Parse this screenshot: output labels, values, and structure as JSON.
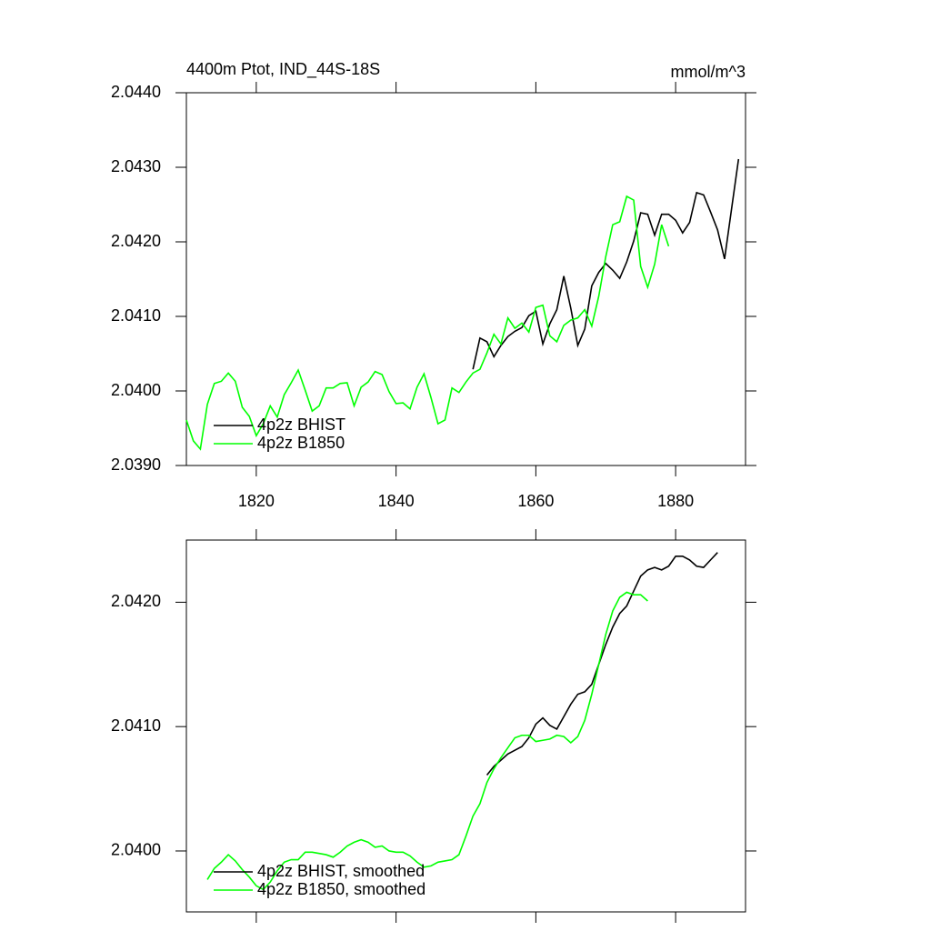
{
  "chart_data": [
    {
      "type": "line",
      "title": "4400m Ptot, IND_44S-18S",
      "units": "mmol/m^3",
      "x": [
        1810,
        1811,
        1812,
        1813,
        1814,
        1815,
        1816,
        1817,
        1818,
        1819,
        1820,
        1821,
        1822,
        1823,
        1824,
        1825,
        1826,
        1827,
        1828,
        1829,
        1830,
        1831,
        1832,
        1833,
        1834,
        1835,
        1836,
        1837,
        1838,
        1839,
        1840,
        1841,
        1842,
        1843,
        1844,
        1845,
        1846,
        1847,
        1848,
        1849,
        1850,
        1851,
        1852,
        1853,
        1854,
        1855,
        1856,
        1857,
        1858,
        1859,
        1860,
        1861,
        1862,
        1863,
        1864,
        1865,
        1866,
        1867,
        1868,
        1869,
        1870,
        1871,
        1872,
        1873,
        1874,
        1875,
        1876,
        1877,
        1878,
        1879,
        1880,
        1881,
        1882,
        1883,
        1884,
        1885,
        1886,
        1887,
        1888,
        1889
      ],
      "series": [
        {
          "name": "4p2z BHIST",
          "color": "#000000",
          "values": [
            null,
            null,
            null,
            null,
            null,
            null,
            null,
            null,
            null,
            null,
            null,
            null,
            null,
            null,
            null,
            null,
            null,
            null,
            null,
            null,
            null,
            null,
            null,
            null,
            null,
            null,
            null,
            null,
            null,
            null,
            null,
            null,
            null,
            null,
            null,
            null,
            null,
            null,
            null,
            null,
            null,
            2.04029,
            2.04071,
            2.04066,
            2.04046,
            2.04061,
            2.04073,
            2.0408,
            2.04085,
            2.04101,
            2.04107,
            2.04063,
            2.0409,
            2.04109,
            2.04154,
            2.04111,
            2.04061,
            2.04083,
            2.04141,
            2.04159,
            2.04171,
            2.04162,
            2.04151,
            2.04173,
            2.04201,
            2.04239,
            2.04237,
            2.04209,
            2.04237,
            2.04237,
            2.04229,
            2.04212,
            2.04226,
            2.04266,
            2.04263,
            2.0424,
            2.04216,
            2.04177,
            2.04244,
            2.04311
          ]
        },
        {
          "name": "4p2z B1850",
          "color": "#00ff00",
          "values": [
            2.03961,
            2.03933,
            2.03922,
            2.03982,
            2.0401,
            2.04013,
            2.04024,
            2.04013,
            2.03978,
            2.03966,
            2.0394,
            2.03956,
            2.0398,
            2.03965,
            2.03995,
            2.04011,
            2.04028,
            2.04001,
            2.03973,
            2.0398,
            2.04004,
            2.04004,
            2.0401,
            2.04011,
            2.0398,
            2.04005,
            2.04012,
            2.04026,
            2.04022,
            2.03999,
            2.03983,
            2.03984,
            2.03976,
            2.04005,
            2.04023,
            2.03991,
            2.03956,
            2.03961,
            2.04004,
            2.03998,
            2.04012,
            2.04024,
            2.04029,
            2.04051,
            2.04076,
            2.04063,
            2.04098,
            2.04084,
            2.04091,
            2.04079,
            2.04112,
            2.04115,
            2.04074,
            2.04066,
            2.04088,
            2.04095,
            2.04098,
            2.04109,
            2.04087,
            2.04127,
            2.0418,
            2.04223,
            2.04227,
            2.04261,
            2.04256,
            2.04167,
            2.04139,
            2.0417,
            2.04223,
            2.04194,
            null,
            null,
            null,
            null,
            null,
            null,
            null,
            null,
            null,
            null
          ]
        }
      ],
      "xlim": [
        1810,
        1890
      ],
      "xticks": [
        1820,
        1840,
        1860,
        1880
      ],
      "x_tick_labels": true,
      "ylim": [
        2.039,
        2.044
      ],
      "yticks": [
        {
          "value": 2.039,
          "label": "2.0390"
        },
        {
          "value": 2.04,
          "label": "2.0400"
        },
        {
          "value": 2.041,
          "label": "2.0410"
        },
        {
          "value": 2.042,
          "label": "2.0420"
        },
        {
          "value": 2.043,
          "label": "2.0430"
        },
        {
          "value": 2.044,
          "label": "2.0440"
        }
      ],
      "legend": "lower left"
    },
    {
      "type": "line",
      "x": [
        1810,
        1811,
        1812,
        1813,
        1814,
        1815,
        1816,
        1817,
        1818,
        1819,
        1820,
        1821,
        1822,
        1823,
        1824,
        1825,
        1826,
        1827,
        1828,
        1829,
        1830,
        1831,
        1832,
        1833,
        1834,
        1835,
        1836,
        1837,
        1838,
        1839,
        1840,
        1841,
        1842,
        1843,
        1844,
        1845,
        1846,
        1847,
        1848,
        1849,
        1850,
        1851,
        1852,
        1853,
        1854,
        1855,
        1856,
        1857,
        1858,
        1859,
        1860,
        1861,
        1862,
        1863,
        1864,
        1865,
        1866,
        1867,
        1868,
        1869,
        1870,
        1871,
        1872,
        1873,
        1874,
        1875,
        1876,
        1877,
        1878,
        1879,
        1880,
        1881,
        1882,
        1883,
        1884,
        1885,
        1886,
        1887,
        1888,
        1889
      ],
      "series": [
        {
          "name": "4p2z BHIST, smoothed",
          "color": "#000000",
          "values": [
            null,
            null,
            null,
            null,
            null,
            null,
            null,
            null,
            null,
            null,
            null,
            null,
            null,
            null,
            null,
            null,
            null,
            null,
            null,
            null,
            null,
            null,
            null,
            null,
            null,
            null,
            null,
            null,
            null,
            null,
            null,
            null,
            null,
            null,
            null,
            null,
            null,
            null,
            null,
            null,
            null,
            null,
            null,
            2.04061,
            2.04068,
            2.04073,
            2.04078,
            2.04081,
            2.04084,
            2.04091,
            2.04102,
            2.04107,
            2.04101,
            2.04098,
            2.04108,
            2.04118,
            2.04126,
            2.04128,
            2.04134,
            2.0415,
            2.04166,
            2.0418,
            2.04191,
            2.04197,
            2.04209,
            2.04221,
            2.04226,
            2.04228,
            2.04226,
            2.04229,
            2.04237,
            2.04237,
            2.04234,
            2.04229,
            2.04228,
            2.04234,
            2.0424,
            null,
            null,
            null
          ]
        },
        {
          "name": "4p2z B1850, smoothed",
          "color": "#00ff00",
          "values": [
            null,
            null,
            null,
            2.03977,
            2.03986,
            2.03991,
            2.03997,
            2.03992,
            2.03985,
            2.03979,
            2.03972,
            2.03969,
            2.03975,
            2.03984,
            2.03991,
            2.03993,
            2.03993,
            2.03999,
            2.03999,
            2.03998,
            2.03997,
            2.03995,
            2.03999,
            2.04004,
            2.04007,
            2.04009,
            2.04007,
            2.04003,
            2.04004,
            2.04,
            2.03999,
            2.03999,
            2.03996,
            2.03991,
            2.03987,
            2.03988,
            2.03991,
            2.03992,
            2.03993,
            2.03997,
            2.04012,
            2.04028,
            2.04038,
            2.04055,
            2.04066,
            2.04075,
            2.04083,
            2.04091,
            2.04093,
            2.04093,
            2.04088,
            2.04089,
            2.0409,
            2.04093,
            2.04092,
            2.04087,
            2.04092,
            2.04105,
            2.04126,
            2.0415,
            2.04174,
            2.04193,
            2.04204,
            2.04208,
            2.04206,
            2.04206,
            2.04201,
            null,
            null,
            null,
            null,
            null,
            null,
            null,
            null,
            null,
            null,
            null,
            null,
            null
          ]
        }
      ],
      "xlim": [
        1810,
        1890
      ],
      "xticks": [
        1820,
        1840,
        1860,
        1880
      ],
      "x_tick_labels": false,
      "ylim": [
        2.03951,
        2.0425
      ],
      "yticks": [
        {
          "value": 2.04,
          "label": "2.0400"
        },
        {
          "value": 2.041,
          "label": "2.0410"
        },
        {
          "value": 2.042,
          "label": "2.0420"
        }
      ],
      "legend": "lower left"
    }
  ]
}
